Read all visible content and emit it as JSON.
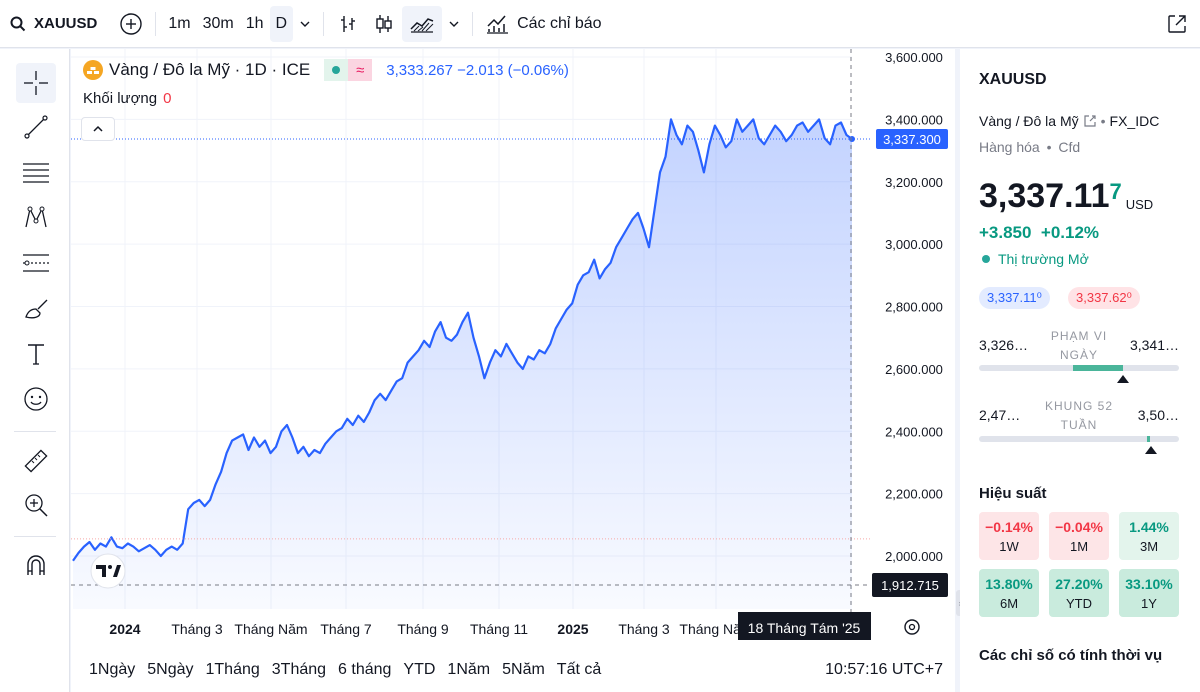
{
  "topbar": {
    "symbol": "XAUUSD",
    "intervals": [
      "1m",
      "30m",
      "1h",
      "D"
    ],
    "indicators_label": "Các chỉ báo"
  },
  "legend": {
    "title": "Vàng / Đô la Mỹ · 1D · ICE",
    "values": "3,333.267  −2.013 (−0.06%)",
    "volume_label": "Khối lượng",
    "volume_value": "0"
  },
  "chart_data": {
    "type": "area",
    "x_labels": [
      "2024",
      "Tháng 3",
      "Tháng Năm",
      "Tháng 7",
      "Tháng 9",
      "Tháng 11",
      "2025",
      "Tháng 3",
      "Tháng Năm"
    ],
    "y_ticks": [
      "3,600.000",
      "3,400.000",
      "3,200.000",
      "3,000.000",
      "2,800.000",
      "2,600.000",
      "2,400.000",
      "2,200.000",
      "2,000.000"
    ],
    "ylim": [
      1850,
      3620
    ],
    "last_price_label": "3,337.300",
    "low_label": "1,912.715",
    "crosshair_date": "18 Tháng Tám '25",
    "series": [
      {
        "values": [
          1985,
          2010,
          2030,
          2045,
          2020,
          2040,
          2030,
          2060,
          2030,
          2025,
          2040,
          2030,
          2015,
          2025,
          2035,
          2020,
          2000,
          2020,
          2030,
          2020,
          2040,
          2150,
          2170,
          2180,
          2160,
          2180,
          2230,
          2270,
          2330,
          2370,
          2380,
          2390,
          2340,
          2380,
          2350,
          2370,
          2330,
          2350,
          2400,
          2420,
          2380,
          2330,
          2350,
          2320,
          2340,
          2330,
          2360,
          2380,
          2400,
          2410,
          2440,
          2420,
          2450,
          2430,
          2460,
          2500,
          2520,
          2500,
          2530,
          2560,
          2570,
          2620,
          2640,
          2660,
          2690,
          2670,
          2720,
          2750,
          2700,
          2690,
          2710,
          2750,
          2780,
          2700,
          2640,
          2570,
          2620,
          2660,
          2640,
          2680,
          2650,
          2620,
          2600,
          2640,
          2630,
          2660,
          2650,
          2680,
          2730,
          2760,
          2790,
          2810,
          2870,
          2900,
          2910,
          2950,
          2890,
          2920,
          2940,
          2990,
          3020,
          3050,
          3080,
          3100,
          3050,
          2990,
          3110,
          3230,
          3280,
          3400,
          3350,
          3320,
          3380,
          3360,
          3300,
          3230,
          3320,
          3380,
          3350,
          3310,
          3330,
          3400,
          3360,
          3380,
          3400,
          3340,
          3320,
          3350,
          3380,
          3360,
          3330,
          3350,
          3380,
          3390,
          3360,
          3380,
          3400,
          3340,
          3320,
          3380,
          3390,
          3350,
          3337
        ]
      }
    ]
  },
  "bottombar": {
    "ranges": [
      "1Ngày",
      "5Ngày",
      "1Tháng",
      "3Tháng",
      "6 tháng",
      "YTD",
      "1Năm",
      "5Năm",
      "Tất cả"
    ],
    "time": "10:57:16 UTC+7"
  },
  "panel": {
    "symbol": "XAUUSD",
    "name": "Vàng / Đô la Mỹ",
    "exchange": "FX_IDC",
    "type": "Hàng hóa",
    "subtype": "Cfd",
    "price_main": "3,337.11",
    "price_small": "7",
    "currency": "USD",
    "change": "+3.850  +0.12%",
    "status": "Thị trường Mở",
    "bid": "3,337.11⁰",
    "ask": "3,337.62⁰",
    "day_low": "3,326…",
    "day_high": "3,341…",
    "day_label": "PHẠM VI NGÀY",
    "day_position": 0.72,
    "wk_low": "2,47…",
    "wk_high": "3,50…",
    "wk_label": "KHUNG 52 TUẦN",
    "wk_position": 0.86,
    "perf_title": "Hiệu suất",
    "perf": [
      {
        "value": "−0.14%",
        "label": "1W",
        "tone": "neg"
      },
      {
        "value": "−0.04%",
        "label": "1M",
        "tone": "neg"
      },
      {
        "value": "1.44%",
        "label": "3M",
        "tone": "pos1"
      },
      {
        "value": "13.80%",
        "label": "6M",
        "tone": "pos2"
      },
      {
        "value": "27.20%",
        "label": "YTD",
        "tone": "pos2"
      },
      {
        "value": "33.10%",
        "label": "1Y",
        "tone": "pos2"
      }
    ],
    "seasonal_title": "Các chỉ số có tính thời vụ"
  }
}
